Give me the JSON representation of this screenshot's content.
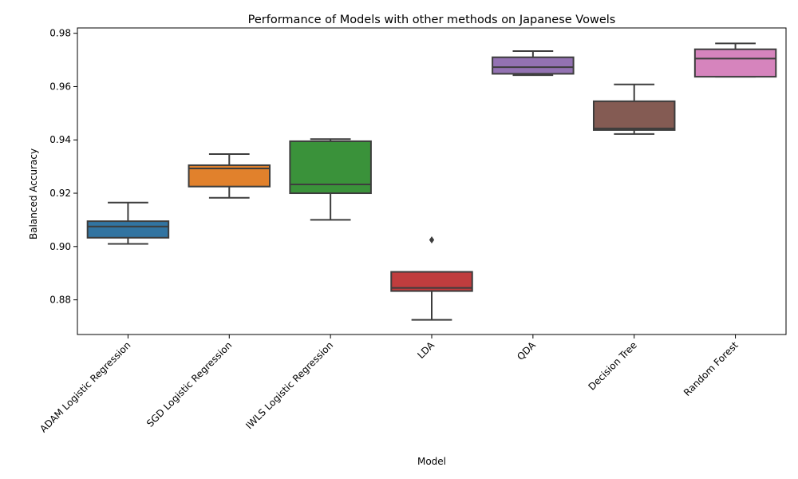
{
  "chart_data": {
    "type": "box",
    "title": "Performance of Models with other methods on Japanese Vowels",
    "xlabel": "Model",
    "ylabel": "Balanced Accuracy",
    "ylim": [
      0.867,
      0.982
    ],
    "yticks": [
      0.88,
      0.9,
      0.92,
      0.94,
      0.96,
      0.98
    ],
    "ytick_labels": [
      "0.88",
      "0.90",
      "0.92",
      "0.94",
      "0.96",
      "0.98"
    ],
    "grid": false,
    "legend": "none",
    "categories": [
      "ADAM Logistic Regression",
      "SGD Logistic Regression",
      "IWLS Logistic Regression",
      "LDA",
      "QDA",
      "Decision Tree",
      "Random Forest"
    ],
    "series": [
      {
        "category": "ADAM Logistic Regression",
        "color": "#3274a1",
        "whisker_low": 0.901,
        "q1": 0.9033,
        "median": 0.9075,
        "q3": 0.9095,
        "whisker_high": 0.9165,
        "outliers": []
      },
      {
        "category": "SGD Logistic Regression",
        "color": "#e1812c",
        "whisker_low": 0.9183,
        "q1": 0.9225,
        "median": 0.9293,
        "q3": 0.9305,
        "whisker_high": 0.9347,
        "outliers": []
      },
      {
        "category": "IWLS Logistic Regression",
        "color": "#3a923a",
        "whisker_low": 0.91,
        "q1": 0.92,
        "median": 0.9233,
        "q3": 0.9395,
        "whisker_high": 0.9403,
        "outliers": []
      },
      {
        "category": "LDA",
        "color": "#c03d3e",
        "whisker_low": 0.8725,
        "q1": 0.8833,
        "median": 0.8845,
        "q3": 0.8905,
        "whisker_high": 0.8905,
        "outliers": [
          0.9025
        ]
      },
      {
        "category": "QDA",
        "color": "#9372b2",
        "whisker_low": 0.9643,
        "q1": 0.9648,
        "median": 0.9673,
        "q3": 0.971,
        "whisker_high": 0.9733,
        "outliers": []
      },
      {
        "category": "Decision Tree",
        "color": "#845b53",
        "whisker_low": 0.9422,
        "q1": 0.9437,
        "median": 0.9443,
        "q3": 0.9545,
        "whisker_high": 0.9608,
        "outliers": []
      },
      {
        "category": "Random Forest",
        "color": "#d684bd",
        "whisker_low": 0.9637,
        "q1": 0.9637,
        "median": 0.9705,
        "q3": 0.974,
        "whisker_high": 0.9762,
        "outliers": []
      }
    ]
  }
}
